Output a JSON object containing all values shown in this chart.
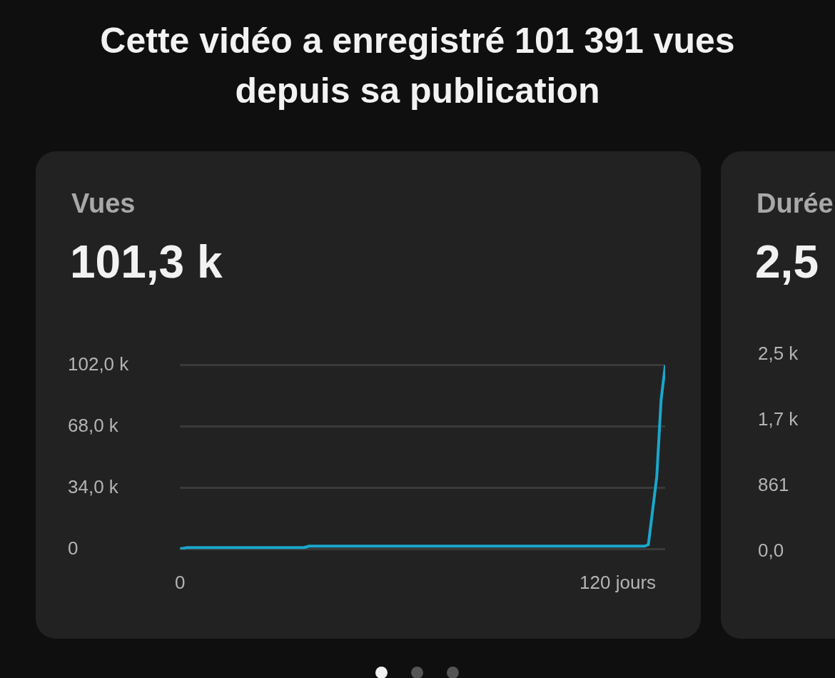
{
  "chart_data": [
    {
      "type": "line",
      "title": "Cette vidéo a enregistré 101 391 vues depuis sa publication",
      "subtitle": "Vues",
      "annotations": [
        "101,3 k"
      ],
      "x": [
        0,
        2,
        34,
        35.4,
        127.4,
        128.4,
        130.7,
        131.9,
        133
      ],
      "series": [
        {
          "color": "#1aa7cc",
          "values": [
            0.3,
            1,
            1,
            1.8,
            1.8,
            2.6,
            40.1,
            82.9,
            101.3
          ]
        }
      ],
      "xlim": [
        0,
        133
      ],
      "xticks": [
        0,
        {
          "value": 120,
          "label": "120 jours"
        }
      ],
      "ylim": [
        0,
        102
      ],
      "yticks": [
        {
          "value": 0,
          "label": "0"
        },
        {
          "value": 34,
          "label": "34,0 k"
        },
        {
          "value": 68,
          "label": "68,0 k"
        },
        {
          "value": 102,
          "label": "102,0 k"
        }
      ],
      "grid": "y",
      "marker": "none",
      "legend": false
    },
    {
      "type": "other",
      "subtitle": "Durée",
      "annotations": [
        "2,5",
        "2,5 k",
        "1,7 k",
        "861",
        "0,0"
      ]
    }
  ]
}
